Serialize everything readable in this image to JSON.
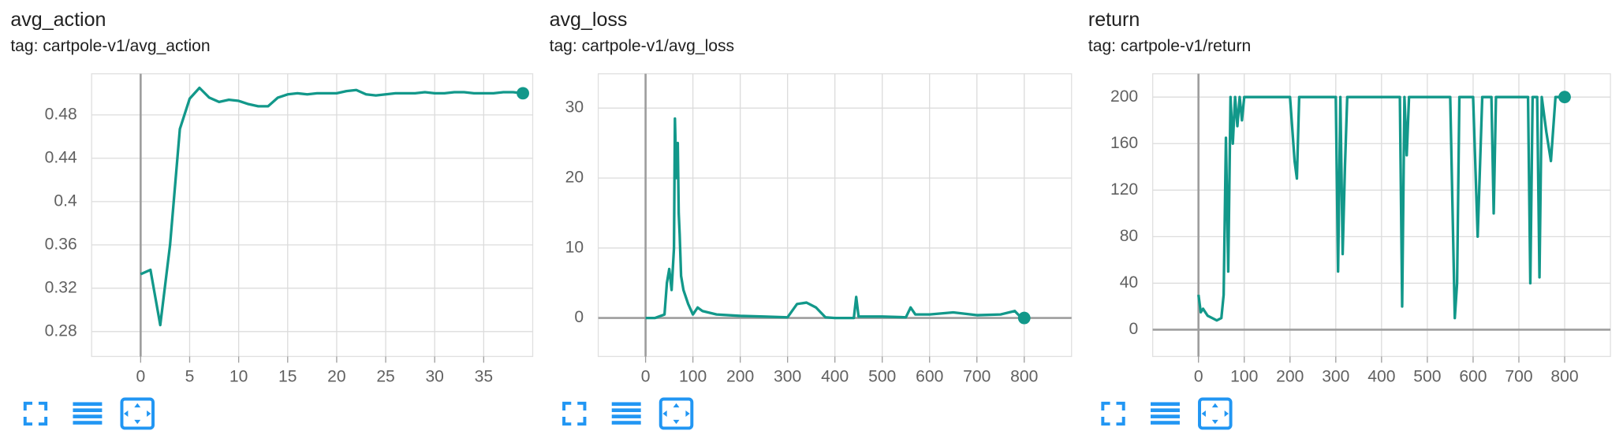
{
  "chart_data": [
    {
      "type": "line",
      "title": "avg_action",
      "subtitle": "tag: cartpole-v1/avg_action",
      "color": "#12988a",
      "grid": true,
      "x": [
        0,
        1,
        2,
        3,
        4,
        5,
        6,
        7,
        8,
        9,
        10,
        11,
        12,
        13,
        14,
        15,
        16,
        17,
        18,
        19,
        20,
        21,
        22,
        23,
        24,
        25,
        26,
        27,
        28,
        29,
        30,
        31,
        32,
        33,
        34,
        35,
        36,
        37,
        38,
        39
      ],
      "values": [
        0.333,
        0.337,
        0.286,
        0.36,
        0.467,
        0.495,
        0.505,
        0.496,
        0.492,
        0.494,
        0.493,
        0.49,
        0.488,
        0.488,
        0.496,
        0.499,
        0.5,
        0.499,
        0.5,
        0.5,
        0.5,
        0.502,
        0.503,
        0.499,
        0.498,
        0.499,
        0.5,
        0.5,
        0.5,
        0.501,
        0.5,
        0.5,
        0.501,
        0.501,
        0.5,
        0.5,
        0.5,
        0.501,
        0.501,
        0.5
      ],
      "xlim": [
        -5,
        40
      ],
      "ylim": [
        0.257,
        0.518
      ],
      "xticks": [
        0,
        5,
        10,
        15,
        20,
        25,
        30,
        35
      ],
      "yticks": [
        0.28,
        0.32,
        0.36,
        0.4,
        0.44,
        0.48
      ]
    },
    {
      "type": "line",
      "title": "avg_loss",
      "subtitle": "tag: cartpole-v1/avg_loss",
      "color": "#12988a",
      "grid": true,
      "x": [
        0,
        20,
        40,
        45,
        50,
        55,
        60,
        62,
        65,
        68,
        70,
        72,
        75,
        80,
        85,
        90,
        100,
        110,
        120,
        150,
        200,
        250,
        300,
        320,
        340,
        360,
        380,
        400,
        440,
        445,
        450,
        500,
        550,
        560,
        570,
        600,
        650,
        700,
        750,
        780,
        790,
        800
      ],
      "values": [
        0,
        0,
        0.5,
        5,
        7,
        4,
        10,
        28.5,
        20,
        25,
        15,
        12,
        6,
        4,
        3,
        2,
        0.5,
        1.5,
        1,
        0.5,
        0.3,
        0.2,
        0.1,
        2,
        2.2,
        1.5,
        0.1,
        0,
        0,
        3,
        0.2,
        0.2,
        0.1,
        1.5,
        0.5,
        0.5,
        0.8,
        0.4,
        0.5,
        1,
        0.3,
        0
      ],
      "xlim": [
        -100,
        900
      ],
      "ylim": [
        -5.5,
        34.9
      ],
      "xticks": [
        0,
        100,
        200,
        300,
        400,
        500,
        600,
        700,
        800
      ],
      "yticks": [
        0,
        10,
        20,
        30
      ]
    },
    {
      "type": "line",
      "title": "return",
      "subtitle": "tag: cartpole-v1/return",
      "color": "#12988a",
      "grid": true,
      "x": [
        0,
        5,
        10,
        20,
        30,
        40,
        50,
        55,
        60,
        65,
        70,
        75,
        80,
        85,
        90,
        95,
        100,
        110,
        120,
        140,
        180,
        200,
        210,
        215,
        220,
        240,
        300,
        305,
        310,
        315,
        320,
        325,
        330,
        340,
        400,
        440,
        445,
        450,
        455,
        460,
        520,
        550,
        560,
        565,
        570,
        600,
        610,
        620,
        640,
        645,
        650,
        700,
        720,
        725,
        730,
        740,
        745,
        750,
        760,
        770,
        780,
        800
      ],
      "values": [
        30,
        15,
        18,
        12,
        10,
        8,
        10,
        30,
        165,
        50,
        200,
        160,
        200,
        175,
        200,
        180,
        200,
        200,
        200,
        200,
        200,
        200,
        145,
        130,
        200,
        200,
        200,
        50,
        200,
        65,
        140,
        200,
        200,
        200,
        200,
        200,
        20,
        200,
        150,
        200,
        200,
        200,
        10,
        40,
        200,
        200,
        80,
        200,
        200,
        100,
        200,
        200,
        200,
        40,
        200,
        200,
        45,
        200,
        170,
        145,
        200,
        200
      ],
      "xlim": [
        -100,
        900
      ],
      "ylim": [
        -23,
        220
      ],
      "xticks": [
        0,
        100,
        200,
        300,
        400,
        500,
        600,
        700,
        800
      ],
      "yticks": [
        0,
        40,
        80,
        120,
        160,
        200
      ]
    }
  ]
}
